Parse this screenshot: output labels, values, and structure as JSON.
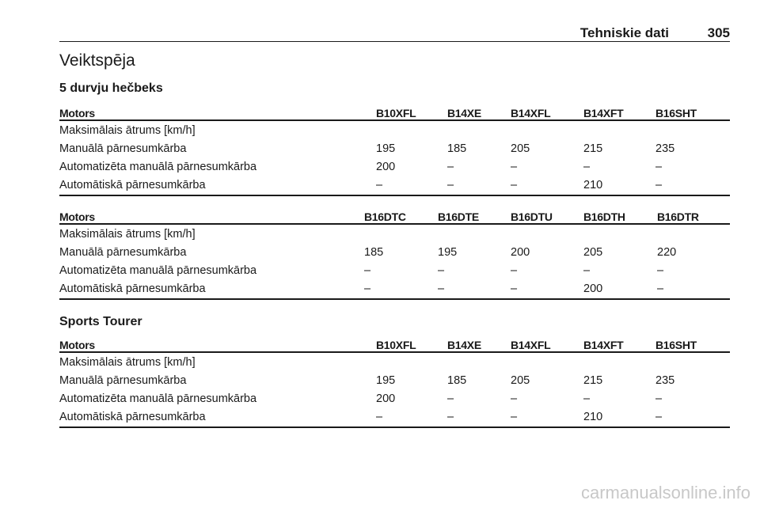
{
  "header": {
    "title": "Tehniskie dati",
    "page": "305"
  },
  "title": "Veiktspēja",
  "sections": [
    {
      "title": "5 durvju hečbeks",
      "tables": [
        {
          "header": [
            "Motors",
            "B10XFL",
            "B14XE",
            "B14XFL",
            "B14XFT",
            "B16SHT"
          ],
          "rows": [
            [
              "Maksimālais ātrums [km/h]"
            ],
            [
              "Manuālā pārnesumkārba",
              "195",
              "185",
              "205",
              "215",
              "235"
            ],
            [
              "Automatizēta manuālā pārnesumkārba",
              "200",
              "–",
              "–",
              "–",
              "–"
            ],
            [
              "Automātiskā pārnesumkārba",
              "–",
              "–",
              "–",
              "210",
              "–"
            ]
          ]
        },
        {
          "header": [
            "Motors",
            "B16DTC",
            "B16DTE",
            "B16DTU",
            "B16DTH",
            "B16DTR"
          ],
          "rows": [
            [
              "Maksimālais ātrums [km/h]"
            ],
            [
              "Manuālā pārnesumkārba",
              "185",
              "195",
              "200",
              "205",
              "220"
            ],
            [
              "Automatizēta manuālā pārnesumkārba",
              "–",
              "–",
              "–",
              "–",
              "–"
            ],
            [
              "Automātiskā pārnesumkārba",
              "–",
              "–",
              "–",
              "200",
              "–"
            ]
          ]
        }
      ]
    },
    {
      "title": "Sports Tourer",
      "tables": [
        {
          "header": [
            "Motors",
            "B10XFL",
            "B14XE",
            "B14XFL",
            "B14XFT",
            "B16SHT"
          ],
          "rows": [
            [
              "Maksimālais ātrums [km/h]"
            ],
            [
              "Manuālā pārnesumkārba",
              "195",
              "185",
              "205",
              "215",
              "235"
            ],
            [
              "Automatizēta manuālā pārnesumkārba",
              "200",
              "–",
              "–",
              "–",
              "–"
            ],
            [
              "Automātiskā pārnesumkārba",
              "–",
              "–",
              "–",
              "210",
              "–"
            ]
          ]
        }
      ]
    }
  ],
  "watermark": "carmanualsonline.info"
}
